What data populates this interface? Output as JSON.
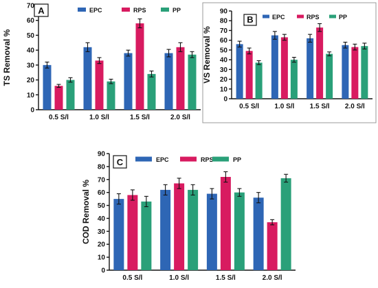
{
  "series_colors": [
    "#2e66b5",
    "#d81b60",
    "#2aa079"
  ],
  "chart_data": [
    {
      "type": "bar",
      "panel": "A",
      "ylabel": "TS Removal %",
      "xlabel": "",
      "ylim": [
        0,
        70
      ],
      "yticks": [
        0,
        10,
        20,
        30,
        40,
        50,
        60,
        70
      ],
      "categories": [
        "0.5 S/l",
        "1.0 S/l",
        "1.5 S/l",
        "2.0 S/l"
      ],
      "legend_position": "top",
      "series": [
        {
          "name": "EPC",
          "values": [
            30,
            42,
            38,
            38
          ],
          "errors": [
            2,
            3,
            2,
            2.5
          ]
        },
        {
          "name": "RPS",
          "values": [
            16,
            33,
            58,
            42
          ],
          "errors": [
            1,
            2,
            3,
            3
          ]
        },
        {
          "name": "PP",
          "values": [
            20,
            19,
            24,
            37
          ],
          "errors": [
            1.5,
            1.5,
            2,
            2
          ]
        }
      ]
    },
    {
      "type": "bar",
      "panel": "B",
      "ylabel": "VS Removal %",
      "xlabel": "",
      "ylim": [
        0,
        90
      ],
      "yticks": [
        0,
        10,
        20,
        30,
        40,
        50,
        60,
        70,
        80,
        90
      ],
      "categories": [
        "0.5 S/l",
        "1.0 S/l",
        "1.5 S/l",
        "2.0 S/l"
      ],
      "legend_position": "top",
      "series": [
        {
          "name": "EPC",
          "values": [
            56,
            65,
            62,
            55
          ],
          "errors": [
            3,
            4,
            4,
            3
          ]
        },
        {
          "name": "RPS",
          "values": [
            49,
            63,
            73,
            53
          ],
          "errors": [
            3,
            3,
            4,
            3
          ]
        },
        {
          "name": "PP",
          "values": [
            37,
            40,
            46,
            54
          ],
          "errors": [
            2,
            2.5,
            2,
            3
          ]
        }
      ]
    },
    {
      "type": "bar",
      "panel": "C",
      "ylabel": "COD Removal %",
      "xlabel": "",
      "ylim": [
        0,
        90
      ],
      "yticks": [
        0,
        10,
        20,
        30,
        40,
        50,
        60,
        70,
        80,
        90
      ],
      "categories": [
        "0.5 S/l",
        "1.0 S/l",
        "1.5 S/l",
        "2.0 S/l"
      ],
      "legend_position": "top",
      "series": [
        {
          "name": "EPC",
          "values": [
            55,
            62,
            59,
            56
          ],
          "errors": [
            4,
            4,
            4,
            4
          ]
        },
        {
          "name": "RPS",
          "values": [
            58,
            67,
            72,
            37
          ],
          "errors": [
            4,
            4,
            4,
            2
          ]
        },
        {
          "name": "PP",
          "values": [
            53,
            62,
            60,
            71
          ],
          "errors": [
            4,
            4,
            3,
            3
          ]
        }
      ]
    }
  ]
}
